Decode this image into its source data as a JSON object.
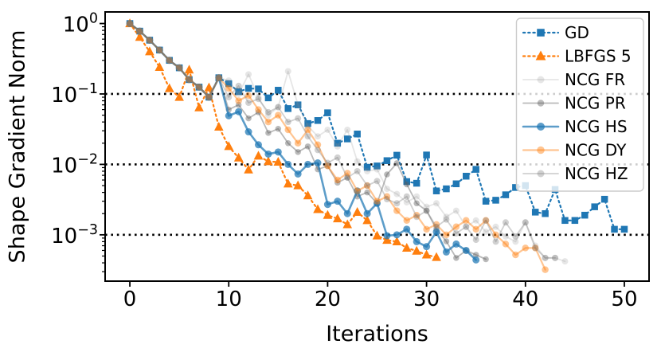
{
  "chart_data": {
    "type": "line",
    "title": "",
    "xlabel": "Iterations",
    "ylabel": "Shape Gradient Norm",
    "x_axis": {
      "min": -2.5,
      "max": 52.5,
      "ticks": [
        0,
        10,
        20,
        30,
        40,
        50
      ],
      "tick_labels": [
        "0",
        "10",
        "20",
        "30",
        "40",
        "50"
      ]
    },
    "y_axis": {
      "scale": "log",
      "min": 0.00022,
      "max": 1.46,
      "ticks": [
        1,
        0.1,
        0.01,
        0.001
      ],
      "tick_labels": [
        {
          "base": "10",
          "exp": "0"
        },
        {
          "base": "10",
          "exp": "−1"
        },
        {
          "base": "10",
          "exp": "−2"
        },
        {
          "base": "10",
          "exp": "−3"
        }
      ]
    },
    "reference_lines": {
      "style": "dotted",
      "color": "#000000",
      "y_values": [
        0.1,
        0.01,
        0.001
      ]
    },
    "grid": false,
    "legend_position": "upper right",
    "axis_color": "#000000",
    "background_color": "#ffffff",
    "series": [
      {
        "name": "GD",
        "color": "#1f77b4",
        "line_style": "dotted",
        "line_width": 2.2,
        "marker": "square",
        "marker_size": 8.5,
        "x_start": 0,
        "x_step": 1,
        "values": [
          1.0,
          0.78,
          0.58,
          0.42,
          0.3,
          0.235,
          0.16,
          0.125,
          0.09,
          0.17,
          0.14,
          0.108,
          0.12,
          0.118,
          0.088,
          0.113,
          0.062,
          0.07,
          0.038,
          0.042,
          0.054,
          0.02,
          0.023,
          0.027,
          0.0091,
          0.0095,
          0.0113,
          0.0135,
          0.0057,
          0.0054,
          0.0136,
          0.0042,
          0.0045,
          0.0053,
          0.0068,
          0.0085,
          0.003,
          0.0031,
          0.0037,
          0.0047,
          0.005,
          0.0021,
          0.002,
          0.0044,
          0.0016,
          0.0016,
          0.0019,
          0.0025,
          0.0032,
          0.0012,
          0.0012
        ]
      },
      {
        "name": "LBFGS 5",
        "color": "#ff7f0e",
        "line_style": "dotted",
        "line_width": 2.2,
        "marker": "triangle",
        "marker_size": 10,
        "x_start": 0,
        "x_step": 1,
        "values": [
          1.0,
          0.64,
          0.4,
          0.24,
          0.12,
          0.09,
          0.22,
          0.064,
          0.123,
          0.034,
          0.018,
          0.0124,
          0.0084,
          0.0132,
          0.011,
          0.0108,
          0.0053,
          0.005,
          0.0036,
          0.0023,
          0.0019,
          0.0017,
          0.0014,
          0.0021,
          0.0016,
          0.00097,
          0.00084,
          0.0008,
          0.00065,
          0.00059,
          0.00052,
          0.00048
        ]
      },
      {
        "name": "NCG FR",
        "color": "rgba(140,140,140,0.22)",
        "line_style": "solid",
        "line_width": 1.8,
        "marker": "circle",
        "marker_size": 8,
        "x_start": 0,
        "x_step": 1,
        "values": [
          1.0,
          0.78,
          0.58,
          0.42,
          0.3,
          0.235,
          0.16,
          0.125,
          0.09,
          0.17,
          0.155,
          0.1,
          0.19,
          0.09,
          0.05,
          0.065,
          0.21,
          0.07,
          0.035,
          0.025,
          0.031,
          0.018,
          0.031,
          0.011,
          0.008,
          0.0085,
          0.0045,
          0.0038,
          0.0029,
          0.0035,
          0.0025,
          0.0028,
          0.0018,
          0.0022,
          0.0013,
          0.0016,
          0.0011,
          0.0013,
          0.00095,
          0.0008,
          0.0015,
          0.0007,
          0.00047,
          0.00047,
          0.00042
        ]
      },
      {
        "name": "NCG PR",
        "color": "rgba(90,90,90,0.42)",
        "line_style": "solid",
        "line_width": 1.8,
        "marker": "circle",
        "marker_size": 7.5,
        "x_start": 0,
        "x_step": 1,
        "values": [
          1.0,
          0.78,
          0.58,
          0.42,
          0.3,
          0.235,
          0.16,
          0.125,
          0.09,
          0.17,
          0.06,
          0.07,
          0.045,
          0.055,
          0.028,
          0.032,
          0.02,
          0.015,
          0.018,
          0.0085,
          0.0095,
          0.0055,
          0.0065,
          0.0035,
          0.004,
          0.0028,
          0.0072,
          0.0104,
          0.0052,
          0.0028,
          0.0022,
          0.0012,
          0.00081,
          0.00047,
          0.0006,
          0.00052,
          0.00045
        ]
      },
      {
        "name": "NCG HS",
        "color": "rgba(31,119,180,0.72)",
        "line_style": "solid",
        "line_width": 2.6,
        "marker": "circle",
        "marker_size": 9,
        "x_start": 0,
        "x_step": 1,
        "values": [
          1.0,
          0.78,
          0.58,
          0.42,
          0.3,
          0.235,
          0.16,
          0.125,
          0.09,
          0.17,
          0.049,
          0.056,
          0.029,
          0.019,
          0.014,
          0.015,
          0.01,
          0.0073,
          0.01,
          0.0105,
          0.0027,
          0.003,
          0.002,
          0.0042,
          0.002,
          0.0028,
          0.00097,
          0.001,
          0.0012,
          0.0008,
          0.00068,
          0.0011,
          0.00057,
          0.00074,
          0.0006,
          0.00044
        ]
      },
      {
        "name": "NCG DY",
        "color": "rgba(255,127,14,0.45)",
        "line_style": "solid",
        "line_width": 2.2,
        "marker": "circle",
        "marker_size": 8.5,
        "x_start": 0,
        "x_step": 1,
        "values": [
          1.0,
          0.78,
          0.58,
          0.42,
          0.3,
          0.235,
          0.16,
          0.125,
          0.09,
          0.17,
          0.12,
          0.08,
          0.095,
          0.06,
          0.04,
          0.05,
          0.031,
          0.02,
          0.031,
          0.019,
          0.0095,
          0.006,
          0.0075,
          0.0042,
          0.005,
          0.003,
          0.0035,
          0.0022,
          0.0016,
          0.0019,
          0.0012,
          0.0014,
          0.001,
          0.0013,
          0.0016,
          0.0012,
          0.0016,
          0.001,
          0.00074,
          0.00052,
          0.00065,
          0.00065,
          0.00032
        ]
      },
      {
        "name": "NCG HZ",
        "color": "rgba(120,120,120,0.34)",
        "line_style": "solid",
        "line_width": 1.8,
        "marker": "circle",
        "marker_size": 8,
        "x_start": 0,
        "x_step": 1,
        "values": [
          1.0,
          0.78,
          0.58,
          0.42,
          0.3,
          0.235,
          0.16,
          0.125,
          0.09,
          0.17,
          0.09,
          0.13,
          0.075,
          0.085,
          0.055,
          0.065,
          0.04,
          0.045,
          0.025,
          0.016,
          0.0105,
          0.0125,
          0.0065,
          0.008,
          0.005,
          0.0058,
          0.0032,
          0.0028,
          0.0035,
          0.0018,
          0.0022,
          0.0013,
          0.00165,
          0.00105,
          0.0013,
          0.00085,
          0.0016,
          0.0008,
          0.0015,
          0.00095,
          0.0015,
          0.00065,
          0.00047,
          0.00047
        ]
      }
    ]
  }
}
